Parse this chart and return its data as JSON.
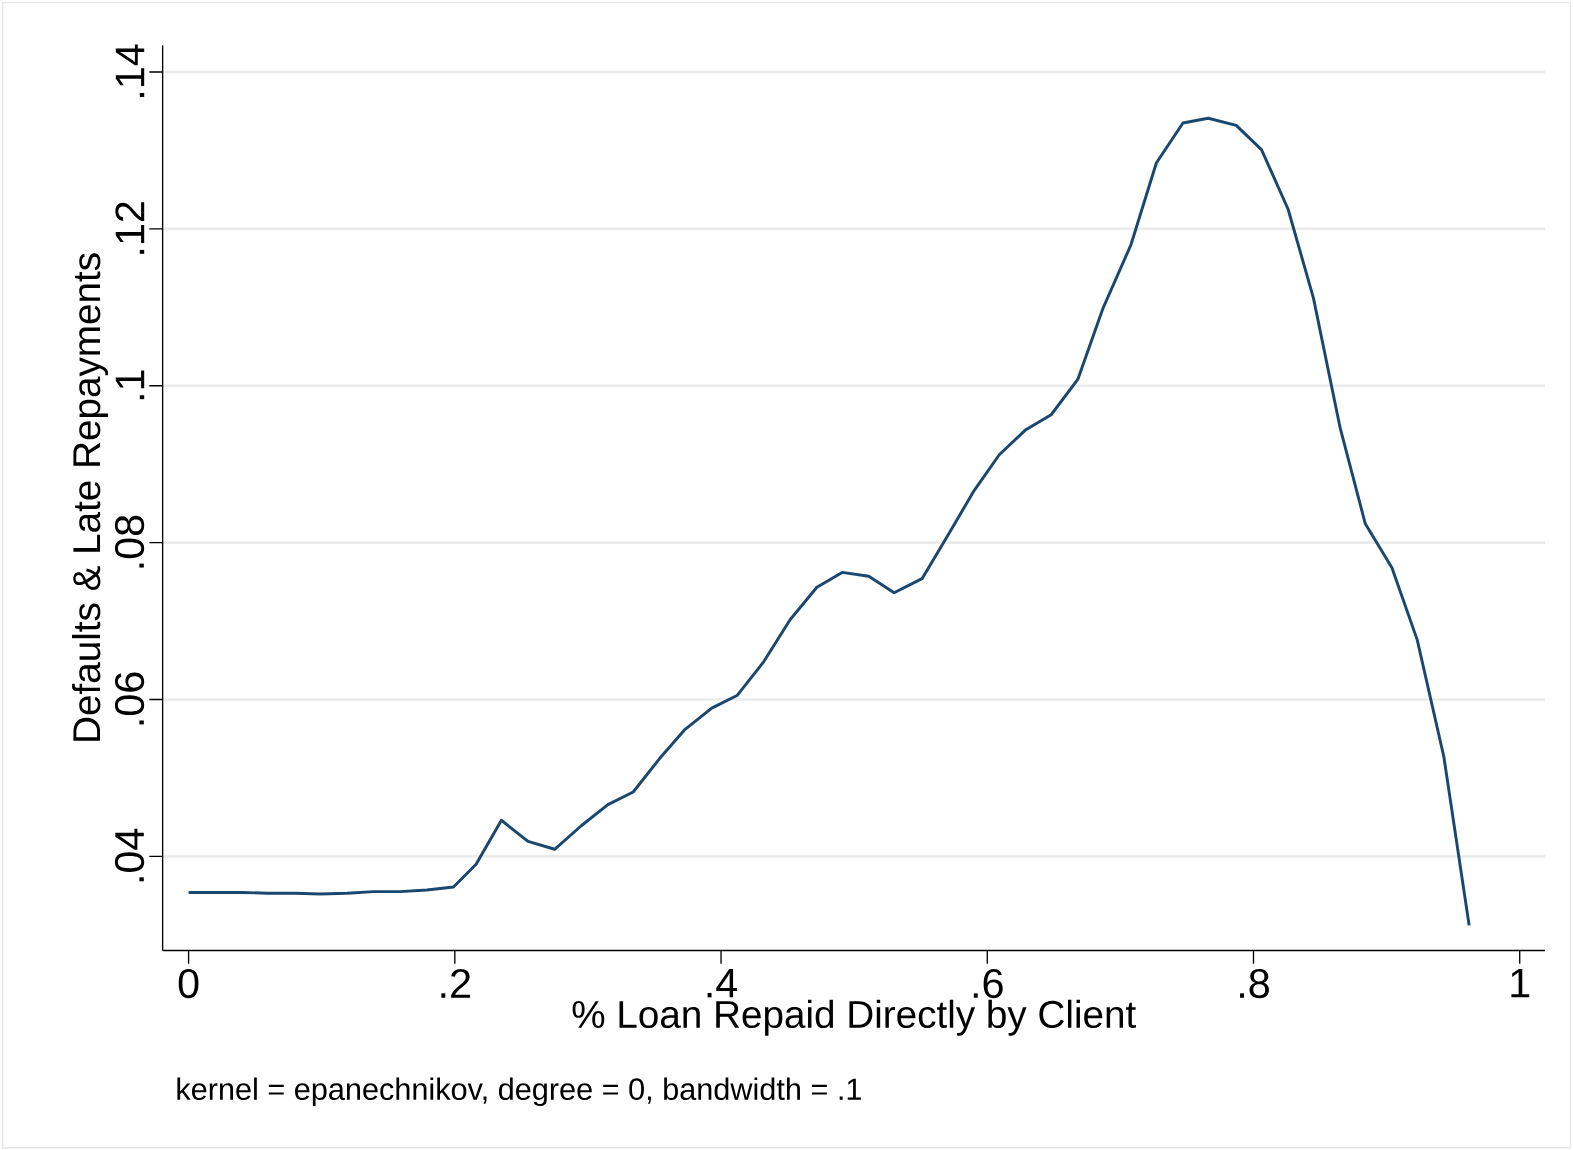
{
  "chart_data": {
    "type": "line",
    "xlabel": "% Loan Repaid Directly by Client",
    "ylabel": "Defaults & Late Repayments",
    "annotations": [
      "kernel = epanechnikov, degree = 0, bandwidth = .1"
    ],
    "x": [
      0,
      0.02,
      0.04,
      0.059,
      0.08,
      0.099,
      0.119,
      0.139,
      0.159,
      0.179,
      0.199,
      0.216,
      0.235,
      0.255,
      0.275,
      0.295,
      0.315,
      0.334,
      0.354,
      0.373,
      0.393,
      0.412,
      0.432,
      0.452,
      0.472,
      0.491,
      0.511,
      0.53,
      0.551,
      0.57,
      0.59,
      0.609,
      0.629,
      0.648,
      0.668,
      0.687,
      0.708,
      0.727,
      0.747,
      0.766,
      0.787,
      0.806,
      0.826,
      0.845,
      0.865,
      0.884,
      0.904,
      0.923,
      0.943,
      0.962
    ],
    "series": [
      {
        "color": "#1a476f",
        "values": [
          0.0354,
          0.0354,
          0.0354,
          0.0353,
          0.0353,
          0.0352,
          0.0353,
          0.0355,
          0.0355,
          0.0357,
          0.0361,
          0.039,
          0.0446,
          0.0419,
          0.0409,
          0.0439,
          0.0466,
          0.0482,
          0.0525,
          0.0562,
          0.0589,
          0.0605,
          0.0648,
          0.0702,
          0.0743,
          0.0762,
          0.0757,
          0.0736,
          0.0754,
          0.0808,
          0.0866,
          0.0912,
          0.0944,
          0.0963,
          0.1008,
          0.1099,
          0.118,
          0.1284,
          0.1335,
          0.1341,
          0.1332,
          0.1301,
          0.1225,
          0.1112,
          0.0947,
          0.0824,
          0.0768,
          0.0676,
          0.0527,
          0.0312
        ]
      }
    ],
    "xlim": [
      -0.0195,
      1.019
    ],
    "ylim": [
      0.028,
      0.1434
    ],
    "xticks": [
      0,
      {
        "value": 0.2,
        "label": ".2"
      },
      {
        "value": 0.4,
        "label": ".4"
      },
      {
        "value": 0.6,
        "label": ".6"
      },
      {
        "value": 0.8,
        "label": ".8"
      },
      1
    ],
    "yticks": [
      {
        "value": 0.04,
        "label": ".04"
      },
      {
        "value": 0.06,
        "label": ".06"
      },
      {
        "value": 0.08,
        "label": ".08"
      },
      {
        "value": 0.1,
        "label": ".1"
      },
      {
        "value": 0.12,
        "label": ".12"
      },
      {
        "value": 0.14,
        "label": ".14"
      }
    ],
    "grid": "y"
  }
}
